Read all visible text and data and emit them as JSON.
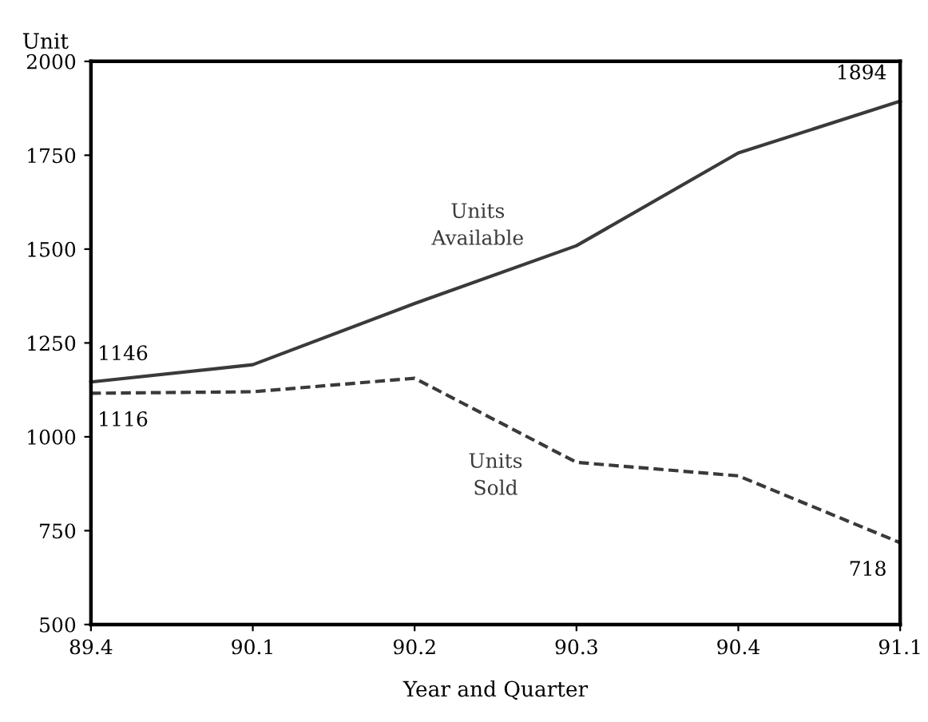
{
  "chart_data": {
    "type": "line",
    "xlabel": "Year and Quarter",
    "ylabel": "Unit",
    "categories": [
      "89.4",
      "90.1",
      "90.2",
      "90.3",
      "90.4",
      "91.1"
    ],
    "series": [
      {
        "name": "Units\nAvailable",
        "color": "#3a3a3a",
        "line_style": "solid",
        "values": [
          1146,
          1192,
          1355,
          1509,
          1756,
          1894
        ],
        "value_labels": [
          "1146",
          null,
          null,
          null,
          null,
          "1894"
        ]
      },
      {
        "name": "Units\nSold",
        "color": "#3a3a3a",
        "line_style": "dashed",
        "values": [
          1116,
          1120,
          1156,
          932,
          896,
          718
        ],
        "value_labels": [
          "1116",
          null,
          null,
          null,
          null,
          "718"
        ]
      }
    ],
    "ylim": [
      500,
      2000
    ],
    "yticks": [
      500,
      750,
      1000,
      1250,
      1500,
      1750,
      2000
    ],
    "grid": false,
    "legend": false,
    "marker": "none"
  }
}
